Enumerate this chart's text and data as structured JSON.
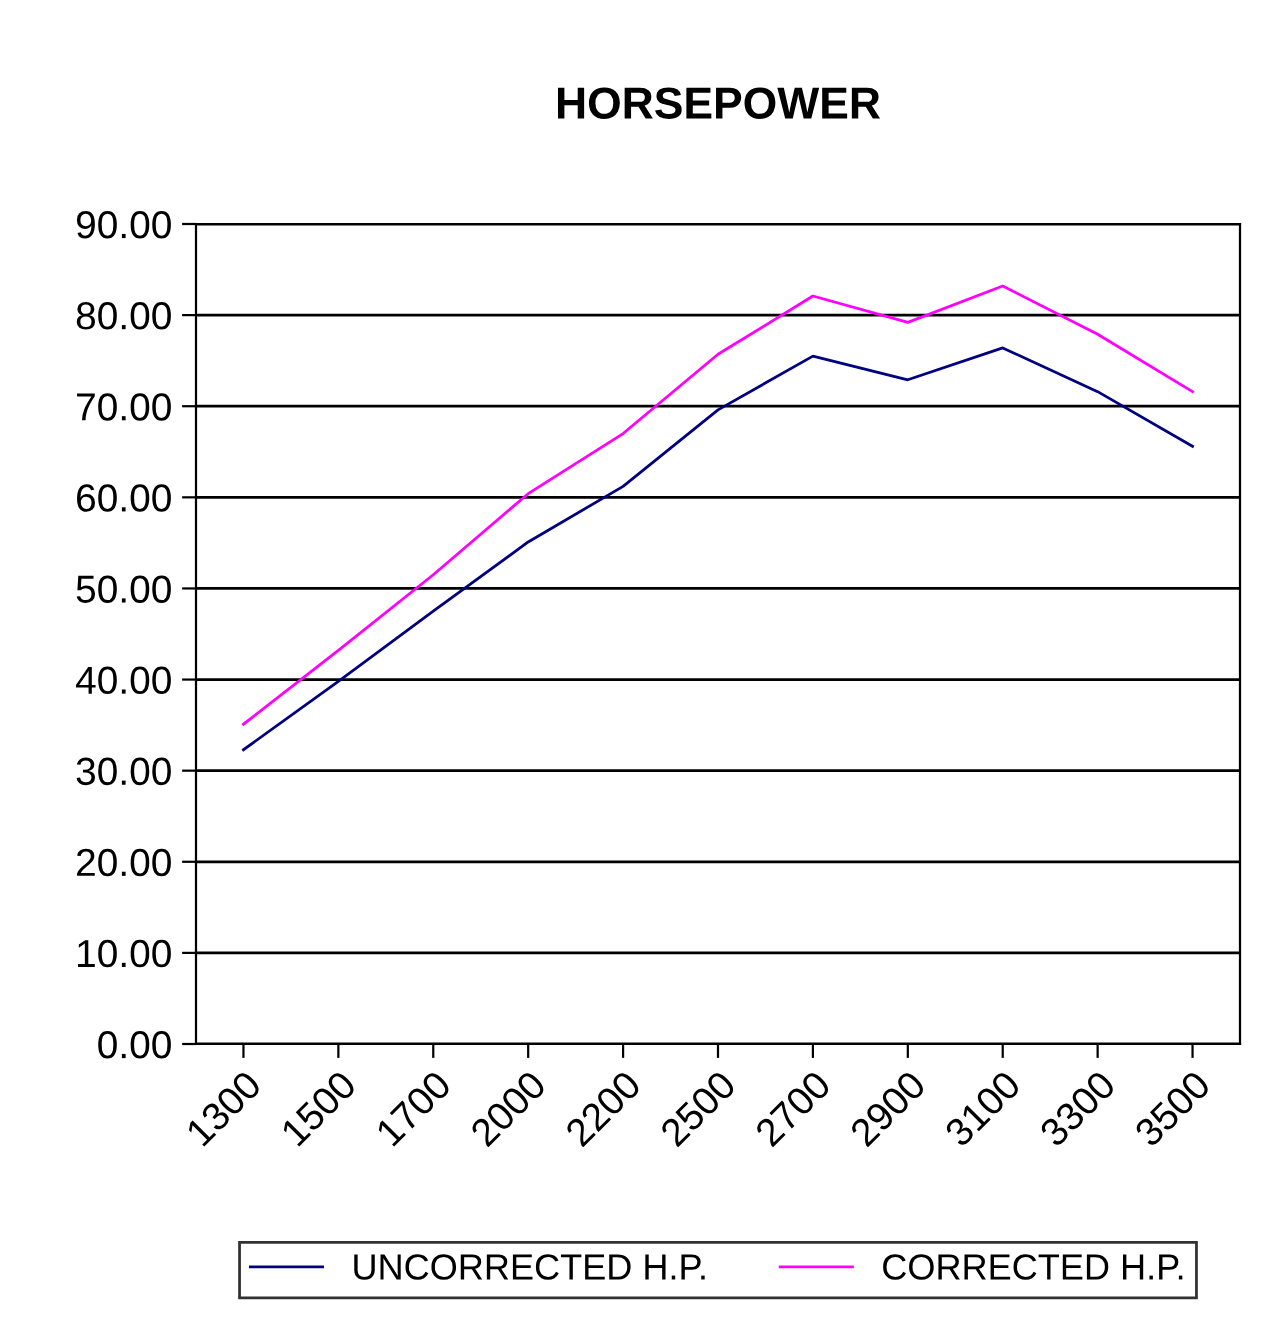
{
  "chart_data": {
    "type": "line",
    "title": "HORSEPOWER",
    "categories": [
      "1300",
      "1500",
      "1700",
      "2000",
      "2200",
      "2500",
      "2700",
      "2900",
      "3100",
      "3300",
      "3500"
    ],
    "series": [
      {
        "name": "UNCORRECTED H.P.",
        "color": "#000080",
        "values": [
          32.3,
          39.8,
          47.5,
          55.1,
          61.2,
          69.6,
          75.5,
          72.9,
          76.4,
          71.6,
          65.6
        ]
      },
      {
        "name": "CORRECTED H.P.",
        "color": "#ff00ff",
        "values": [
          35.1,
          43.2,
          51.5,
          60.4,
          67.0,
          75.7,
          82.1,
          79.2,
          83.2,
          77.9,
          71.6
        ]
      }
    ],
    "ylim": [
      0,
      90
    ],
    "yticks": [
      {
        "value": 0,
        "label": "0.00"
      },
      {
        "value": 10,
        "label": "10.00"
      },
      {
        "value": 20,
        "label": "20.00"
      },
      {
        "value": 30,
        "label": "30.00"
      },
      {
        "value": 40,
        "label": "40.00"
      },
      {
        "value": 50,
        "label": "50.00"
      },
      {
        "value": 60,
        "label": "60.00"
      },
      {
        "value": 70,
        "label": "70.00"
      },
      {
        "value": 80,
        "label": "80.00"
      },
      {
        "value": 90,
        "label": "90.00"
      }
    ],
    "grid": "y",
    "legend": "bottom",
    "marker": "none",
    "line_style": "solid"
  }
}
